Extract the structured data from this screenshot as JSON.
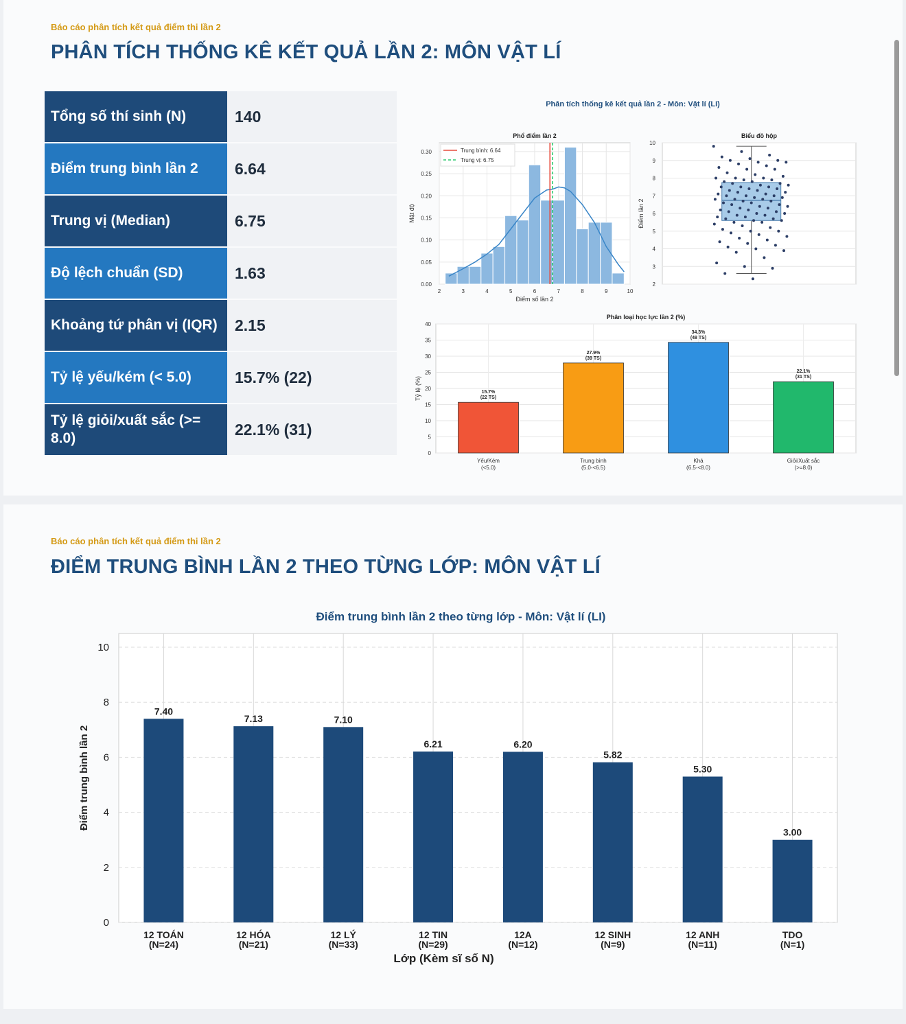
{
  "section1": {
    "subtitle": "Báo cáo phân tích kết quả điểm thi lần 2",
    "title": "PHÂN TÍCH THỐNG KÊ KẾT QUẢ LẦN 2: MÔN VẬT LÍ"
  },
  "stats": [
    {
      "label": "Tổng số thí sinh (N)",
      "value": "140"
    },
    {
      "label": "Điểm trung bình lần 2",
      "value": "6.64"
    },
    {
      "label": "Trung vị (Median)",
      "value": "6.75"
    },
    {
      "label": "Độ lệch chuẩn (SD)",
      "value": "1.63"
    },
    {
      "label": "Khoảng tứ phân vị (IQR)",
      "value": "2.15"
    },
    {
      "label": "Tỷ lệ yếu/kém (< 5.0)",
      "value": "15.7% (22)"
    },
    {
      "label": "Tỷ lệ giỏi/xuất sắc (>= 8.0)",
      "value": "22.1% (31)"
    }
  ],
  "section2": {
    "subtitle": "Báo cáo phân tích kết quả điểm thi lần 2",
    "title": "ĐIỂM TRUNG BÌNH LẦN 2 THEO TỪNG LỚP: MÔN VẬT LÍ"
  },
  "chart_data": [
    {
      "type": "bar",
      "title": "Phổ điểm lần 2",
      "suptitle": "Phân tích thống kê kết quả lần 2 - Môn: Vật lí (LI)",
      "xlabel": "Điểm số lần 2",
      "ylabel": "Mật độ",
      "xlim": [
        2,
        10
      ],
      "ylim": [
        0,
        0.32
      ],
      "xticks": [
        2,
        3,
        4,
        5,
        6,
        7,
        8,
        9,
        10
      ],
      "yticks": [
        "0.00",
        "0.05",
        "0.10",
        "0.15",
        "0.20",
        "0.25",
        "0.30"
      ],
      "bin_edges": [
        2.25,
        2.75,
        3.25,
        3.75,
        4.25,
        4.75,
        5.25,
        5.75,
        6.25,
        6.75,
        7.25,
        7.75,
        8.25,
        8.75,
        9.25,
        9.75
      ],
      "values": [
        0.025,
        0.04,
        0.04,
        0.07,
        0.085,
        0.155,
        0.145,
        0.27,
        0.19,
        0.19,
        0.31,
        0.125,
        0.14,
        0.14,
        0.025
      ],
      "kde_x": [
        2.4,
        3,
        3.5,
        4,
        4.5,
        5,
        5.5,
        6,
        6.5,
        6.75,
        7,
        7.25,
        7.5,
        8,
        8.5,
        9,
        9.5,
        9.75
      ],
      "kde_y": [
        0.018,
        0.035,
        0.05,
        0.068,
        0.09,
        0.125,
        0.16,
        0.195,
        0.213,
        0.215,
        0.22,
        0.218,
        0.21,
        0.18,
        0.14,
        0.085,
        0.045,
        0.028
      ],
      "mean": 6.64,
      "median": 6.75,
      "legend": [
        "Trung bình: 6.64",
        "Trung vị: 6.75"
      ],
      "legend_position": "top-left",
      "grid": true
    },
    {
      "type": "box",
      "title": "Biểu đồ hộp",
      "ylabel": "Điểm lần 2",
      "ylim": [
        2,
        10
      ],
      "yticks": [
        2,
        3,
        4,
        5,
        6,
        7,
        8,
        9,
        10
      ],
      "q1": 5.6,
      "median": 6.75,
      "q3": 7.75,
      "whisker_low": 2.6,
      "whisker_high": 9.8,
      "points": [
        9.8,
        9.5,
        9.3,
        9.2,
        9.1,
        9.0,
        9.0,
        8.9,
        8.9,
        8.8,
        8.7,
        8.6,
        8.5,
        8.5,
        8.3,
        8.2,
        8.1,
        8.0,
        8.0,
        8.0,
        7.9,
        7.9,
        7.8,
        7.8,
        7.7,
        7.7,
        7.6,
        7.6,
        7.5,
        7.5,
        7.5,
        7.4,
        7.4,
        7.3,
        7.3,
        7.2,
        7.2,
        7.1,
        7.1,
        7.0,
        7.0,
        7.0,
        6.9,
        6.9,
        6.8,
        6.8,
        6.8,
        6.7,
        6.7,
        6.6,
        6.6,
        6.5,
        6.5,
        6.4,
        6.4,
        6.3,
        6.3,
        6.2,
        6.2,
        6.1,
        6.1,
        6.0,
        6.0,
        5.9,
        5.9,
        5.8,
        5.8,
        5.7,
        5.7,
        5.6,
        5.6,
        5.5,
        5.5,
        5.4,
        5.3,
        5.2,
        5.1,
        5.0,
        5.0,
        4.9,
        4.8,
        4.7,
        4.6,
        4.5,
        4.4,
        4.3,
        4.2,
        4.1,
        4.0,
        3.9,
        3.8,
        3.5,
        3.2,
        3.0,
        2.9,
        2.6,
        2.3
      ],
      "grid": true
    },
    {
      "type": "bar",
      "title": "Phân loại học lực lần 2 (%)",
      "ylabel": "Tỷ lệ (%)",
      "ylim": [
        0,
        40
      ],
      "yticks": [
        0,
        5,
        10,
        15,
        20,
        25,
        30,
        35,
        40
      ],
      "categories": [
        [
          "Yếu/Kém",
          "(<5.0)"
        ],
        [
          "Trung bình",
          "(5.0-<6.5)"
        ],
        [
          "Khá",
          "(6.5-<8.0)"
        ],
        [
          "Giỏi/Xuất sắc",
          "(>=8.0)"
        ]
      ],
      "values": [
        15.7,
        27.9,
        34.3,
        22.1
      ],
      "labels": [
        [
          "15.7%",
          "(22 TS)"
        ],
        [
          "27.9%",
          "(39 TS)"
        ],
        [
          "34.3%",
          "(48 TS)"
        ],
        [
          "22.1%",
          "(31 TS)"
        ]
      ],
      "colors": [
        "#f05537",
        "#f89c14",
        "#2f90e0",
        "#21b86c"
      ],
      "grid": true
    },
    {
      "type": "bar",
      "title": "Điểm trung bình lần 2 theo từng lớp - Môn: Vật lí (LI)",
      "xlabel": "Lớp (Kèm sĩ số N)",
      "ylabel": "Điểm trung bình lần 2",
      "ylim": [
        0,
        10.5
      ],
      "yticks": [
        0,
        2,
        4,
        6,
        8,
        10
      ],
      "categories": [
        [
          "12 TOÁN",
          "(N=24)"
        ],
        [
          "12 HÓA",
          "(N=21)"
        ],
        [
          "12 LÝ",
          "(N=33)"
        ],
        [
          "12 TIN",
          "(N=29)"
        ],
        [
          "12A",
          "(N=12)"
        ],
        [
          "12 SINH",
          "(N=9)"
        ],
        [
          "12 ANH",
          "(N=11)"
        ],
        [
          "TDO",
          "(N=1)"
        ]
      ],
      "values": [
        7.4,
        7.13,
        7.1,
        6.21,
        6.2,
        5.82,
        5.3,
        3.0
      ],
      "value_labels": [
        "7.40",
        "7.13",
        "7.10",
        "6.21",
        "6.20",
        "5.82",
        "5.30",
        "3.00"
      ],
      "color": "#1d4a7a",
      "grid": true
    }
  ]
}
